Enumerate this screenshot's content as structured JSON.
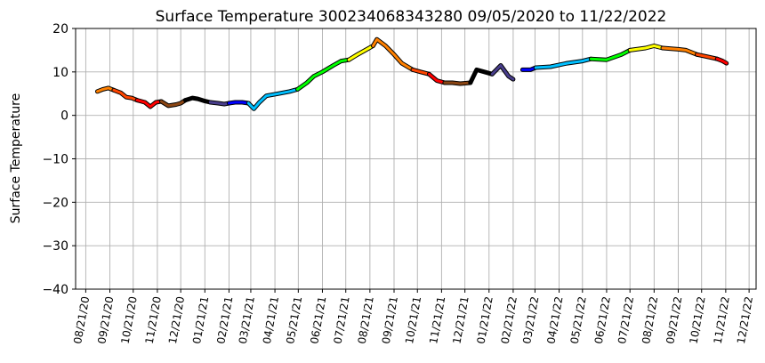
{
  "chart_data": {
    "type": "line",
    "title": "Surface Temperature 300234068343280  09/05/2020 to 11/22/2022",
    "ylabel": "Surface Temperature",
    "xlabel": "",
    "ylim": [
      -40,
      20
    ],
    "yticks": [
      20,
      10,
      0,
      -10,
      -20,
      -30,
      -40
    ],
    "grid": true,
    "x_tick_labels": [
      "08/21/20",
      "09/21/20",
      "10/21/20",
      "11/21/20",
      "12/21/20",
      "01/21/21",
      "02/21/21",
      "03/21/21",
      "04/21/21",
      "05/21/21",
      "06/21/21",
      "07/21/21",
      "08/21/21",
      "09/21/21",
      "10/21/21",
      "11/21/21",
      "12/21/21",
      "01/21/22",
      "02/21/22",
      "03/21/22",
      "04/21/22",
      "05/21/22",
      "06/21/22",
      "07/21/22",
      "08/21/22",
      "09/21/22",
      "10/21/22",
      "11/21/22",
      "12/21/22"
    ],
    "x_range": [
      "2020-08-08",
      "2022-12-30"
    ],
    "series": [
      {
        "color": "#ff8000",
        "points": [
          [
            "2020-09-05",
            5.5
          ],
          [
            "2020-09-12",
            6.0
          ],
          [
            "2020-09-19",
            6.3
          ],
          [
            "2020-09-26",
            5.8
          ]
        ]
      },
      {
        "color": "#ff4500",
        "points": [
          [
            "2020-09-26",
            5.8
          ],
          [
            "2020-10-05",
            5.2
          ],
          [
            "2020-10-12",
            4.2
          ],
          [
            "2020-10-19",
            4.0
          ],
          [
            "2020-10-26",
            3.5
          ]
        ]
      },
      {
        "color": "#ff0000",
        "points": [
          [
            "2020-10-26",
            3.5
          ],
          [
            "2020-11-05",
            3.0
          ],
          [
            "2020-11-12",
            2.0
          ],
          [
            "2020-11-19",
            3.0
          ],
          [
            "2020-11-26",
            3.2
          ]
        ]
      },
      {
        "color": "#8b4513",
        "points": [
          [
            "2020-11-26",
            3.2
          ],
          [
            "2020-12-05",
            2.2
          ],
          [
            "2020-12-15",
            2.5
          ],
          [
            "2020-12-21",
            2.8
          ],
          [
            "2020-12-27",
            3.5
          ]
        ]
      },
      {
        "color": "#000000",
        "points": [
          [
            "2020-12-27",
            3.5
          ],
          [
            "2021-01-05",
            4.0
          ],
          [
            "2021-01-12",
            3.8
          ],
          [
            "2021-01-21",
            3.3
          ],
          [
            "2021-01-28",
            3.0
          ]
        ]
      },
      {
        "color": "#483d8b",
        "points": [
          [
            "2021-01-28",
            3.0
          ],
          [
            "2021-02-07",
            2.8
          ],
          [
            "2021-02-15",
            2.6
          ],
          [
            "2021-02-21",
            2.8
          ]
        ]
      },
      {
        "color": "#0000ff",
        "points": [
          [
            "2021-02-21",
            2.8
          ],
          [
            "2021-03-01",
            3.0
          ],
          [
            "2021-03-10",
            3.0
          ],
          [
            "2021-03-18",
            2.8
          ]
        ]
      },
      {
        "color": "#00bfff",
        "points": [
          [
            "2021-03-18",
            2.8
          ],
          [
            "2021-03-25",
            1.5
          ],
          [
            "2021-04-01",
            3.0
          ],
          [
            "2021-04-10",
            4.5
          ],
          [
            "2021-04-25",
            5.0
          ],
          [
            "2021-05-10",
            5.5
          ],
          [
            "2021-05-20",
            6.0
          ]
        ]
      },
      {
        "color": "#00ff00",
        "points": [
          [
            "2021-05-20",
            6.0
          ],
          [
            "2021-06-01",
            7.5
          ],
          [
            "2021-06-10",
            9.0
          ],
          [
            "2021-06-21",
            10.0
          ],
          [
            "2021-07-05",
            11.5
          ],
          [
            "2021-07-15",
            12.5
          ],
          [
            "2021-07-25",
            12.8
          ]
        ]
      },
      {
        "color": "#ffff00",
        "points": [
          [
            "2021-07-25",
            12.8
          ],
          [
            "2021-08-05",
            14.0
          ],
          [
            "2021-08-15",
            15.0
          ],
          [
            "2021-08-25",
            16.0
          ]
        ]
      },
      {
        "color": "#ff8000",
        "points": [
          [
            "2021-08-25",
            16.0
          ],
          [
            "2021-08-30",
            17.5
          ],
          [
            "2021-09-10",
            16.0
          ],
          [
            "2021-09-21",
            14.0
          ],
          [
            "2021-10-01",
            12.0
          ],
          [
            "2021-10-15",
            10.5
          ]
        ]
      },
      {
        "color": "#ff4500",
        "points": [
          [
            "2021-10-15",
            10.5
          ],
          [
            "2021-10-25",
            10.0
          ],
          [
            "2021-11-05",
            9.5
          ]
        ]
      },
      {
        "color": "#ff0000",
        "points": [
          [
            "2021-11-05",
            9.5
          ],
          [
            "2021-11-15",
            8.0
          ],
          [
            "2021-11-25",
            7.5
          ]
        ]
      },
      {
        "color": "#8b4513",
        "points": [
          [
            "2021-11-25",
            7.5
          ],
          [
            "2021-12-05",
            7.5
          ],
          [
            "2021-12-15",
            7.3
          ],
          [
            "2021-12-28",
            7.5
          ]
        ]
      },
      {
        "color": "#000000",
        "points": [
          [
            "2021-12-28",
            7.5
          ],
          [
            "2022-01-05",
            10.5
          ],
          [
            "2022-01-15",
            10.0
          ],
          [
            "2022-01-25",
            9.5
          ]
        ]
      },
      {
        "color": "#483d8b",
        "points": [
          [
            "2022-01-25",
            9.5
          ],
          [
            "2022-02-05",
            11.5
          ],
          [
            "2022-02-15",
            9.0
          ],
          [
            "2022-02-21",
            8.3
          ]
        ]
      },
      {
        "color": "#0000ff",
        "points": [
          [
            "2022-03-05",
            10.5
          ],
          [
            "2022-03-15",
            10.5
          ],
          [
            "2022-03-22",
            11.0
          ]
        ]
      },
      {
        "color": "#00bfff",
        "points": [
          [
            "2022-03-22",
            11.0
          ],
          [
            "2022-04-10",
            11.2
          ],
          [
            "2022-05-01",
            12.0
          ],
          [
            "2022-05-21",
            12.5
          ],
          [
            "2022-06-01",
            13.0
          ]
        ]
      },
      {
        "color": "#00ff00",
        "points": [
          [
            "2022-06-01",
            13.0
          ],
          [
            "2022-06-21",
            12.8
          ],
          [
            "2022-07-10",
            14.0
          ],
          [
            "2022-07-21",
            15.0
          ]
        ]
      },
      {
        "color": "#ffff00",
        "points": [
          [
            "2022-07-21",
            15.0
          ],
          [
            "2022-08-10",
            15.5
          ],
          [
            "2022-08-21",
            16.0
          ],
          [
            "2022-09-01",
            15.5
          ]
        ]
      },
      {
        "color": "#ff8000",
        "points": [
          [
            "2022-09-01",
            15.5
          ],
          [
            "2022-09-21",
            15.2
          ],
          [
            "2022-10-01",
            15.0
          ],
          [
            "2022-10-15",
            14.0
          ]
        ]
      },
      {
        "color": "#ff4500",
        "points": [
          [
            "2022-10-15",
            14.0
          ],
          [
            "2022-10-28",
            13.5
          ],
          [
            "2022-11-10",
            13.0
          ]
        ]
      },
      {
        "color": "#ff0000",
        "points": [
          [
            "2022-11-10",
            13.0
          ],
          [
            "2022-11-17",
            12.5
          ],
          [
            "2022-11-22",
            12.0
          ]
        ]
      }
    ]
  }
}
